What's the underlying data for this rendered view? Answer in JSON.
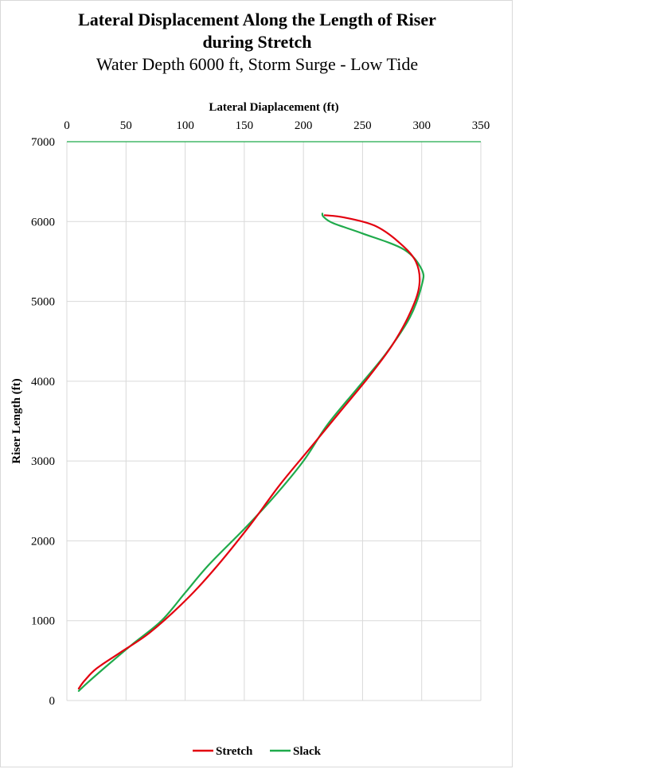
{
  "chart_data": {
    "type": "line",
    "title_line1": "Lateral Displacement Along the Length of  Riser",
    "title_line2": "during Stretch",
    "subtitle": "Water Depth 6000 ft, Storm Surge -  Low Tide",
    "xlabel": "Lateral Diaplacement (ft)",
    "ylabel": "Riser Length (ft)",
    "xlim": [
      0,
      350
    ],
    "ylim": [
      0,
      7000
    ],
    "x_ticks": [
      0,
      50,
      100,
      150,
      200,
      250,
      300,
      350
    ],
    "y_ticks": [
      0,
      1000,
      2000,
      3000,
      4000,
      5000,
      6000,
      7000
    ],
    "x_axis_position": "top",
    "grid": true,
    "legend_position": "bottom",
    "series": [
      {
        "name": "Stretch",
        "color": "#e3000f",
        "points": [
          [
            10,
            150
          ],
          [
            15,
            250
          ],
          [
            25,
            400
          ],
          [
            45,
            600
          ],
          [
            70,
            850
          ],
          [
            100,
            1250
          ],
          [
            125,
            1650
          ],
          [
            155,
            2200
          ],
          [
            180,
            2700
          ],
          [
            205,
            3150
          ],
          [
            230,
            3600
          ],
          [
            255,
            4050
          ],
          [
            275,
            4450
          ],
          [
            290,
            4850
          ],
          [
            298,
            5200
          ],
          [
            295,
            5500
          ],
          [
            280,
            5750
          ],
          [
            260,
            5950
          ],
          [
            235,
            6050
          ],
          [
            218,
            6080
          ]
        ]
      },
      {
        "name": "Slack",
        "color": "#1faa4b",
        "points": [
          [
            10,
            120
          ],
          [
            18,
            230
          ],
          [
            35,
            450
          ],
          [
            55,
            700
          ],
          [
            80,
            1000
          ],
          [
            100,
            1350
          ],
          [
            120,
            1700
          ],
          [
            150,
            2150
          ],
          [
            175,
            2550
          ],
          [
            200,
            3000
          ],
          [
            220,
            3450
          ],
          [
            245,
            3900
          ],
          [
            270,
            4350
          ],
          [
            290,
            4800
          ],
          [
            300,
            5200
          ],
          [
            300,
            5400
          ],
          [
            285,
            5650
          ],
          [
            250,
            5850
          ],
          [
            225,
            5980
          ],
          [
            217,
            6060
          ],
          [
            216,
            6100
          ]
        ]
      }
    ]
  }
}
